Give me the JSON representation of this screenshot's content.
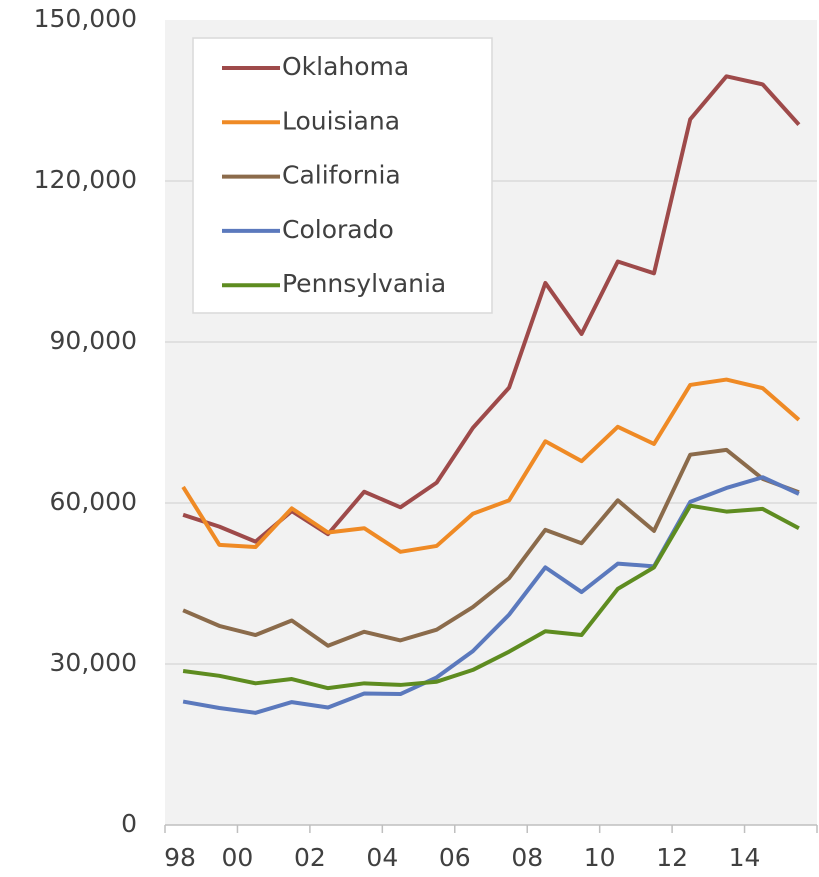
{
  "chart_data": {
    "type": "line",
    "categories": [
      "98",
      null,
      "00",
      null,
      "02",
      null,
      "04",
      null,
      "06",
      null,
      "08",
      null,
      "10",
      null,
      "12",
      null,
      "14",
      null
    ],
    "series": [
      {
        "name": "Oklahoma",
        "color": "#9e4a4a",
        "values": [
          57800,
          55600,
          52800,
          58500,
          54200,
          62100,
          59200,
          63800,
          74000,
          81500,
          101000,
          91500,
          105000,
          102800,
          131500,
          139500,
          138000,
          130500
        ]
      },
      {
        "name": "Louisiana",
        "color": "#ef8a25",
        "values": [
          63000,
          52200,
          51800,
          59000,
          54500,
          55300,
          50900,
          52000,
          58000,
          60500,
          71500,
          67800,
          74200,
          71000,
          82000,
          83000,
          81400,
          75500
        ]
      },
      {
        "name": "California",
        "color": "#8b6b4b",
        "values": [
          40000,
          37100,
          35400,
          38100,
          33400,
          36000,
          34400,
          36400,
          40600,
          46000,
          55000,
          52500,
          60500,
          54800,
          69000,
          69900,
          64500,
          62000
        ]
      },
      {
        "name": "Colorado",
        "color": "#5b79bd",
        "values": [
          23000,
          21800,
          20900,
          22900,
          21900,
          24500,
          24400,
          27500,
          32400,
          39200,
          48000,
          43400,
          48700,
          48200,
          60200,
          62800,
          64800,
          61700
        ]
      },
      {
        "name": "Pennsylvania",
        "color": "#5e8c20",
        "values": [
          28700,
          27800,
          26400,
          27200,
          25500,
          26400,
          26100,
          26700,
          28900,
          32300,
          36100,
          35400,
          44000,
          48000,
          59500,
          58400,
          58900,
          55300
        ]
      }
    ],
    "ylim": [
      0,
      150000
    ],
    "yticks": [
      0,
      {
        "value": 30000,
        "label": "30,000"
      },
      {
        "value": 60000,
        "label": "60,000"
      },
      {
        "value": 90000,
        "label": "90,000"
      },
      {
        "value": 120000,
        "label": "120,000"
      },
      {
        "value": 150000,
        "label": "150,000"
      }
    ],
    "grid": true,
    "legend": "upper left"
  }
}
